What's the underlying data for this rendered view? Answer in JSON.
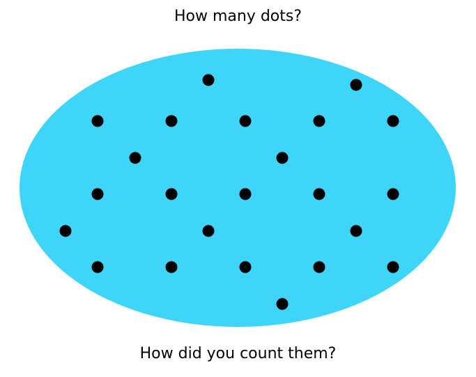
{
  "prompt": {
    "question": "How many dots?",
    "followup": "How did you count them?"
  },
  "colors": {
    "ellipse_fill": "#3fd5f8",
    "dot_fill": "#000000"
  },
  "dots": {
    "count": 23
  }
}
